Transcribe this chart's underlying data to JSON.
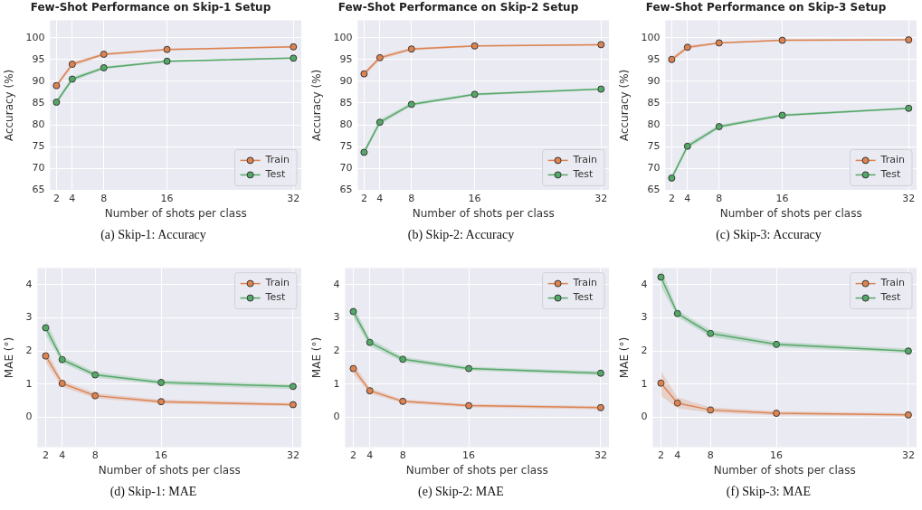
{
  "chart_data": [
    {
      "type": "line",
      "title": "Few-Shot Performance on Skip-1 Setup",
      "xlabel": "Number of shots per class",
      "ylabel": "Accuracy (%)",
      "x": [
        2,
        4,
        8,
        16,
        32
      ],
      "xlim": [
        1.2,
        33
      ],
      "xticks": [
        2,
        4,
        8,
        16,
        32
      ],
      "ylim": [
        65,
        104
      ],
      "yticks": [
        65,
        70,
        75,
        80,
        85,
        90,
        95,
        100
      ],
      "grid": true,
      "legend": "lower right",
      "marker": "circle",
      "annotations": [
        "(a) Skip-1: Accuracy"
      ],
      "series": [
        {
          "name": "Train",
          "color": "#dd8452",
          "values": [
            89.0,
            93.9,
            96.2,
            97.3,
            97.9
          ],
          "lower": [
            88.5,
            93.4,
            95.9,
            97.1,
            97.7
          ],
          "upper": [
            89.5,
            94.4,
            96.5,
            97.5,
            98.1
          ]
        },
        {
          "name": "Test",
          "color": "#55a868",
          "values": [
            85.2,
            90.5,
            93.1,
            94.6,
            95.3
          ],
          "lower": [
            84.7,
            90.0,
            92.8,
            94.4,
            95.1
          ],
          "upper": [
            85.7,
            91.0,
            93.4,
            94.8,
            95.5
          ]
        }
      ]
    },
    {
      "type": "line",
      "title": "Few-Shot Performance on Skip-2 Setup",
      "xlabel": "Number of shots per class",
      "ylabel": "Accuracy (%)",
      "x": [
        2,
        4,
        8,
        16,
        32
      ],
      "xlim": [
        1.2,
        33
      ],
      "xticks": [
        2,
        4,
        8,
        16,
        32
      ],
      "ylim": [
        65,
        104
      ],
      "yticks": [
        65,
        70,
        75,
        80,
        85,
        90,
        95,
        100
      ],
      "grid": true,
      "legend": "lower right",
      "marker": "circle",
      "annotations": [
        "(b) Skip-2: Accuracy"
      ],
      "series": [
        {
          "name": "Train",
          "color": "#dd8452",
          "values": [
            91.7,
            95.4,
            97.4,
            98.1,
            98.4
          ],
          "lower": [
            91.2,
            94.9,
            97.1,
            97.9,
            98.2
          ],
          "upper": [
            92.2,
            95.9,
            97.7,
            98.3,
            98.6
          ]
        },
        {
          "name": "Test",
          "color": "#55a868",
          "values": [
            73.7,
            80.6,
            84.7,
            87.0,
            88.2
          ],
          "lower": [
            73.1,
            80.0,
            84.3,
            86.7,
            88.0
          ],
          "upper": [
            74.3,
            81.2,
            85.1,
            87.3,
            88.4
          ]
        }
      ]
    },
    {
      "type": "line",
      "title": "Few-Shot Performance on Skip-3 Setup",
      "xlabel": "Number of shots per class",
      "ylabel": "Accuracy (%)",
      "x": [
        2,
        4,
        8,
        16,
        32
      ],
      "xlim": [
        1.2,
        33
      ],
      "xticks": [
        2,
        4,
        8,
        16,
        32
      ],
      "ylim": [
        65,
        104
      ],
      "yticks": [
        65,
        70,
        75,
        80,
        85,
        90,
        95,
        100
      ],
      "grid": true,
      "legend": "lower right",
      "marker": "circle",
      "annotations": [
        "(c) Skip-3: Accuracy"
      ],
      "series": [
        {
          "name": "Train",
          "color": "#dd8452",
          "values": [
            95.0,
            97.8,
            98.8,
            99.4,
            99.5
          ],
          "lower": [
            94.5,
            97.4,
            98.6,
            99.2,
            99.3
          ],
          "upper": [
            95.5,
            98.2,
            99.0,
            99.6,
            99.7
          ]
        },
        {
          "name": "Test",
          "color": "#55a868",
          "values": [
            67.8,
            75.1,
            79.6,
            82.2,
            83.8
          ],
          "lower": [
            67.2,
            74.5,
            79.2,
            81.9,
            83.6
          ],
          "upper": [
            68.4,
            75.7,
            80.0,
            82.5,
            84.0
          ]
        }
      ]
    },
    {
      "type": "line",
      "xlabel": "Number of shots per class",
      "ylabel": "MAE (°)",
      "x": [
        2,
        4,
        8,
        16,
        32
      ],
      "xlim": [
        1,
        33
      ],
      "xticks": [
        2,
        4,
        8,
        16,
        32
      ],
      "ylim": [
        -0.9,
        4.5
      ],
      "yticks": [
        0,
        1,
        2,
        3,
        4
      ],
      "grid": true,
      "legend": "top right",
      "marker": "circle",
      "annotations": [
        "(d) Skip-1: MAE"
      ],
      "series": [
        {
          "name": "Train",
          "color": "#dd8452",
          "values": [
            1.85,
            1.02,
            0.65,
            0.47,
            0.38
          ],
          "lower": [
            1.65,
            0.92,
            0.57,
            0.41,
            0.33
          ],
          "upper": [
            2.06,
            1.12,
            0.73,
            0.53,
            0.43
          ]
        },
        {
          "name": "Test",
          "color": "#55a868",
          "values": [
            2.7,
            1.74,
            1.28,
            1.05,
            0.93
          ],
          "lower": [
            2.48,
            1.64,
            1.2,
            0.98,
            0.85
          ],
          "upper": [
            2.95,
            1.84,
            1.36,
            1.12,
            1.0
          ]
        }
      ]
    },
    {
      "type": "line",
      "xlabel": "Number of shots per class",
      "ylabel": "MAE (°)",
      "x": [
        2,
        4,
        8,
        16,
        32
      ],
      "xlim": [
        1,
        33
      ],
      "xticks": [
        2,
        4,
        8,
        16,
        32
      ],
      "ylim": [
        -0.9,
        4.5
      ],
      "yticks": [
        0,
        1,
        2,
        3,
        4
      ],
      "grid": true,
      "legend": "top right",
      "marker": "circle",
      "annotations": [
        "(e) Skip-2: MAE"
      ],
      "series": [
        {
          "name": "Train",
          "color": "#dd8452",
          "values": [
            1.47,
            0.8,
            0.48,
            0.35,
            0.29
          ],
          "lower": [
            1.3,
            0.72,
            0.42,
            0.3,
            0.24
          ],
          "upper": [
            1.65,
            0.88,
            0.54,
            0.4,
            0.34
          ]
        },
        {
          "name": "Test",
          "color": "#55a868",
          "values": [
            3.19,
            2.26,
            1.75,
            1.47,
            1.33
          ],
          "lower": [
            3.0,
            2.15,
            1.67,
            1.41,
            1.27
          ],
          "upper": [
            3.38,
            2.37,
            1.83,
            1.53,
            1.39
          ]
        }
      ]
    },
    {
      "type": "line",
      "xlabel": "Number of shots per class",
      "ylabel": "MAE (°)",
      "x": [
        2,
        4,
        8,
        16,
        32
      ],
      "xlim": [
        1,
        33
      ],
      "xticks": [
        2,
        4,
        8,
        16,
        32
      ],
      "ylim": [
        -0.9,
        4.5
      ],
      "yticks": [
        0,
        1,
        2,
        3,
        4
      ],
      "grid": true,
      "legend": "top right",
      "marker": "circle",
      "annotations": [
        "(f) Skip-3: MAE"
      ],
      "series": [
        {
          "name": "Train",
          "color": "#dd8452",
          "values": [
            1.03,
            0.43,
            0.22,
            0.12,
            0.07
          ],
          "lower": [
            0.65,
            0.27,
            0.14,
            0.06,
            0.02
          ],
          "upper": [
            1.4,
            0.6,
            0.3,
            0.18,
            0.12
          ]
        },
        {
          "name": "Test",
          "color": "#55a868",
          "values": [
            4.23,
            3.13,
            2.53,
            2.2,
            2.0
          ],
          "lower": [
            3.95,
            3.03,
            2.43,
            2.12,
            1.93
          ],
          "upper": [
            4.5,
            3.23,
            2.63,
            2.28,
            2.07
          ]
        }
      ]
    }
  ]
}
